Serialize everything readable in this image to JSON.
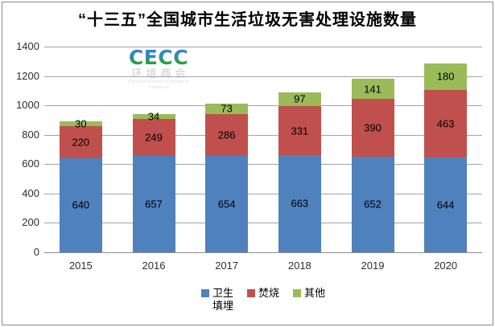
{
  "title": "“十三五”全国城市生活垃圾无害处理设施数量",
  "watermark": {
    "logo": "CECC",
    "cn": "环境商会",
    "en": "China Environment Chamber of Commerce"
  },
  "colors": {
    "landfill": "#4f81bd",
    "incineration": "#c0504d",
    "other": "#9bbb59",
    "gridline": "#a3a3a3",
    "axis_line": "#8c8c8c",
    "frame_border": "#8b8b8b"
  },
  "chart_data": {
    "type": "bar",
    "stacked": true,
    "title": "“十三五”全国城市生活垃圾无害处理设施数量",
    "categories": [
      "2015",
      "2016",
      "2017",
      "2018",
      "2019",
      "2020"
    ],
    "series": [
      {
        "name": "卫生填埋",
        "key": "landfill",
        "color": "#4f81bd",
        "legend_lines": [
          "卫生",
          "填埋"
        ],
        "values": [
          640,
          657,
          654,
          663,
          652,
          644
        ]
      },
      {
        "name": "焚烧",
        "key": "incineration",
        "color": "#c0504d",
        "legend_lines": [
          "焚烧"
        ],
        "values": [
          220,
          249,
          286,
          331,
          390,
          463
        ]
      },
      {
        "name": "其他",
        "key": "other",
        "color": "#9bbb59",
        "legend_lines": [
          "其他"
        ],
        "values": [
          30,
          34,
          73,
          97,
          141,
          180
        ]
      }
    ],
    "totals": [
      890,
      940,
      1013,
      1091,
      1183,
      1287
    ],
    "xlabel": "",
    "ylabel": "",
    "ylim": [
      0,
      1400
    ],
    "yticks": [
      0,
      200,
      400,
      600,
      800,
      1000,
      1200,
      1400
    ],
    "grid": true,
    "legend_position": "bottom",
    "data_labels": true
  }
}
